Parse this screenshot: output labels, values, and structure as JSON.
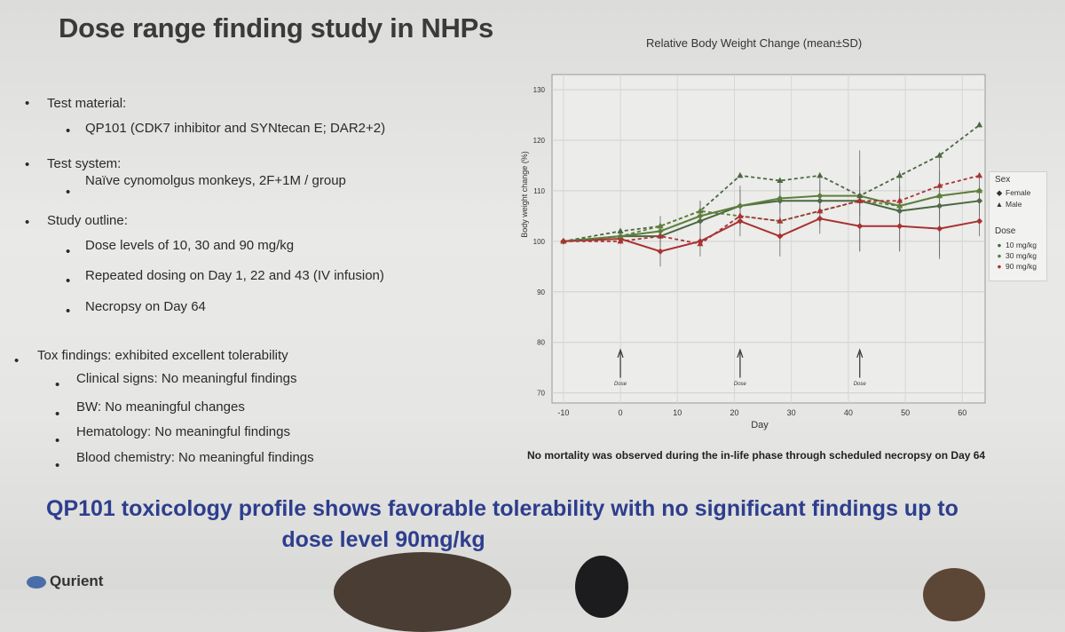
{
  "slide": {
    "title": "Dose range finding study in NHPs",
    "bullets": [
      {
        "label": "Test material:",
        "sub": [
          "QP101 (CDK7 inhibitor and SYNtecan E; DAR2+2)"
        ]
      },
      {
        "label": "Test system:",
        "sub": [
          "Naïve cynomolgus monkeys, 2F+1M / group"
        ]
      },
      {
        "label": "Study outline:",
        "sub": [
          "Dose levels of 10, 30 and 90 mg/kg",
          "Repeated dosing on Day 1, 22 and 43 (IV infusion)",
          "Necropsy on Day 64"
        ]
      }
    ],
    "tox": {
      "label": "Tox findings: exhibited excellent tolerability",
      "sub": [
        "Clinical signs: No meaningful findings",
        "BW: No meaningful changes",
        "Hematology: No meaningful findings",
        "Blood chemistry: No meaningful findings"
      ]
    },
    "note": "No mortality was observed during the in-life phase through scheduled necropsy on Day 64",
    "conclusion_line1": "QP101 toxicology profile shows favorable tolerability with no significant findings up to",
    "conclusion_line2": "dose level 90mg/kg",
    "logo": "Qurient"
  },
  "colors": {
    "10 mg/kg": "#4a6741",
    "30 mg/kg": "#5d7f3c",
    "90 mg/kg": "#a83232",
    "conclusion": "#2d3e8e"
  },
  "chart_data": {
    "type": "line",
    "title": "Relative Body Weight Change (mean±SD)",
    "xlabel": "Day",
    "ylabel": "Body weight change (%)",
    "xlim": [
      -12,
      64
    ],
    "ylim": [
      68,
      133
    ],
    "xticks": [
      -10,
      0,
      10,
      20,
      30,
      40,
      50,
      60
    ],
    "yticks": [
      70,
      80,
      90,
      100,
      110,
      120,
      130
    ],
    "grid": true,
    "legend_position": "right",
    "legend": {
      "sex_title": "Sex",
      "sex": [
        "Female",
        "Male"
      ],
      "dose_title": "Dose",
      "dose": [
        "10 mg/kg",
        "30 mg/kg",
        "90 mg/kg"
      ]
    },
    "annotations": [
      {
        "x": 0,
        "label": "Dose"
      },
      {
        "x": 21,
        "label": "Dose"
      },
      {
        "x": 42,
        "label": "Dose"
      }
    ],
    "series": [
      {
        "name": "10 mg/kg Female",
        "dose": "10 mg/kg",
        "sex": "Female",
        "color": "#4a6741",
        "x": [
          -10,
          0,
          7,
          14,
          21,
          28,
          35,
          42,
          49,
          56,
          63
        ],
        "y": [
          100,
          101,
          101,
          104,
          107,
          108,
          108,
          108,
          106,
          107,
          108
        ],
        "err": [
          0,
          1,
          2,
          4,
          4,
          4,
          5,
          10,
          8,
          10,
          3
        ]
      },
      {
        "name": "30 mg/kg Female",
        "dose": "30 mg/kg",
        "sex": "Female",
        "color": "#5d7f3c",
        "x": [
          -10,
          0,
          7,
          14,
          21,
          28,
          35,
          42,
          49,
          56,
          63
        ],
        "y": [
          100,
          101,
          102,
          105,
          107,
          108.5,
          109,
          109,
          107,
          109,
          110
        ],
        "err": [
          0,
          1,
          3,
          3,
          3,
          3,
          3,
          4,
          4,
          5,
          3
        ]
      },
      {
        "name": "90 mg/kg Female",
        "dose": "90 mg/kg",
        "sex": "Female",
        "color": "#a83232",
        "x": [
          -10,
          0,
          7,
          14,
          21,
          28,
          35,
          42,
          49,
          56,
          63
        ],
        "y": [
          100,
          100.5,
          98,
          100,
          104,
          101,
          104.5,
          103,
          103,
          102.5,
          104
        ],
        "err": [
          0,
          1,
          3,
          3,
          3,
          4,
          3,
          5,
          5,
          6,
          3
        ]
      },
      {
        "name": "10 mg/kg Male",
        "dose": "10 mg/kg",
        "sex": "Male",
        "color": "#4a6741",
        "x": [
          -10,
          0,
          7,
          14,
          21,
          28,
          35,
          42,
          49,
          56,
          63
        ],
        "y": [
          100,
          102,
          103,
          106,
          113,
          112,
          113,
          109,
          113,
          117,
          123
        ],
        "err": [
          0,
          0,
          0,
          0,
          0,
          0,
          0,
          0,
          0,
          0,
          0
        ]
      },
      {
        "name": "30 mg/kg Male",
        "dose": "30 mg/kg",
        "sex": "Male",
        "color": "#5d7f3c",
        "x": [
          -10,
          0,
          7,
          14,
          21,
          28,
          35,
          42,
          49,
          56,
          63
        ],
        "y": [
          100,
          101,
          103,
          106,
          105,
          104,
          106,
          108,
          107,
          109,
          110
        ],
        "err": [
          0,
          0,
          0,
          0,
          0,
          0,
          0,
          0,
          0,
          0,
          0
        ]
      },
      {
        "name": "90 mg/kg Male",
        "dose": "90 mg/kg",
        "sex": "Male",
        "color": "#a83232",
        "x": [
          -10,
          0,
          7,
          14,
          21,
          28,
          35,
          42,
          49,
          56,
          63
        ],
        "y": [
          100,
          100,
          101,
          99.5,
          105,
          104,
          106,
          108,
          108,
          111,
          113
        ],
        "err": [
          0,
          0,
          0,
          0,
          0,
          0,
          0,
          0,
          0,
          0,
          0
        ]
      }
    ]
  }
}
